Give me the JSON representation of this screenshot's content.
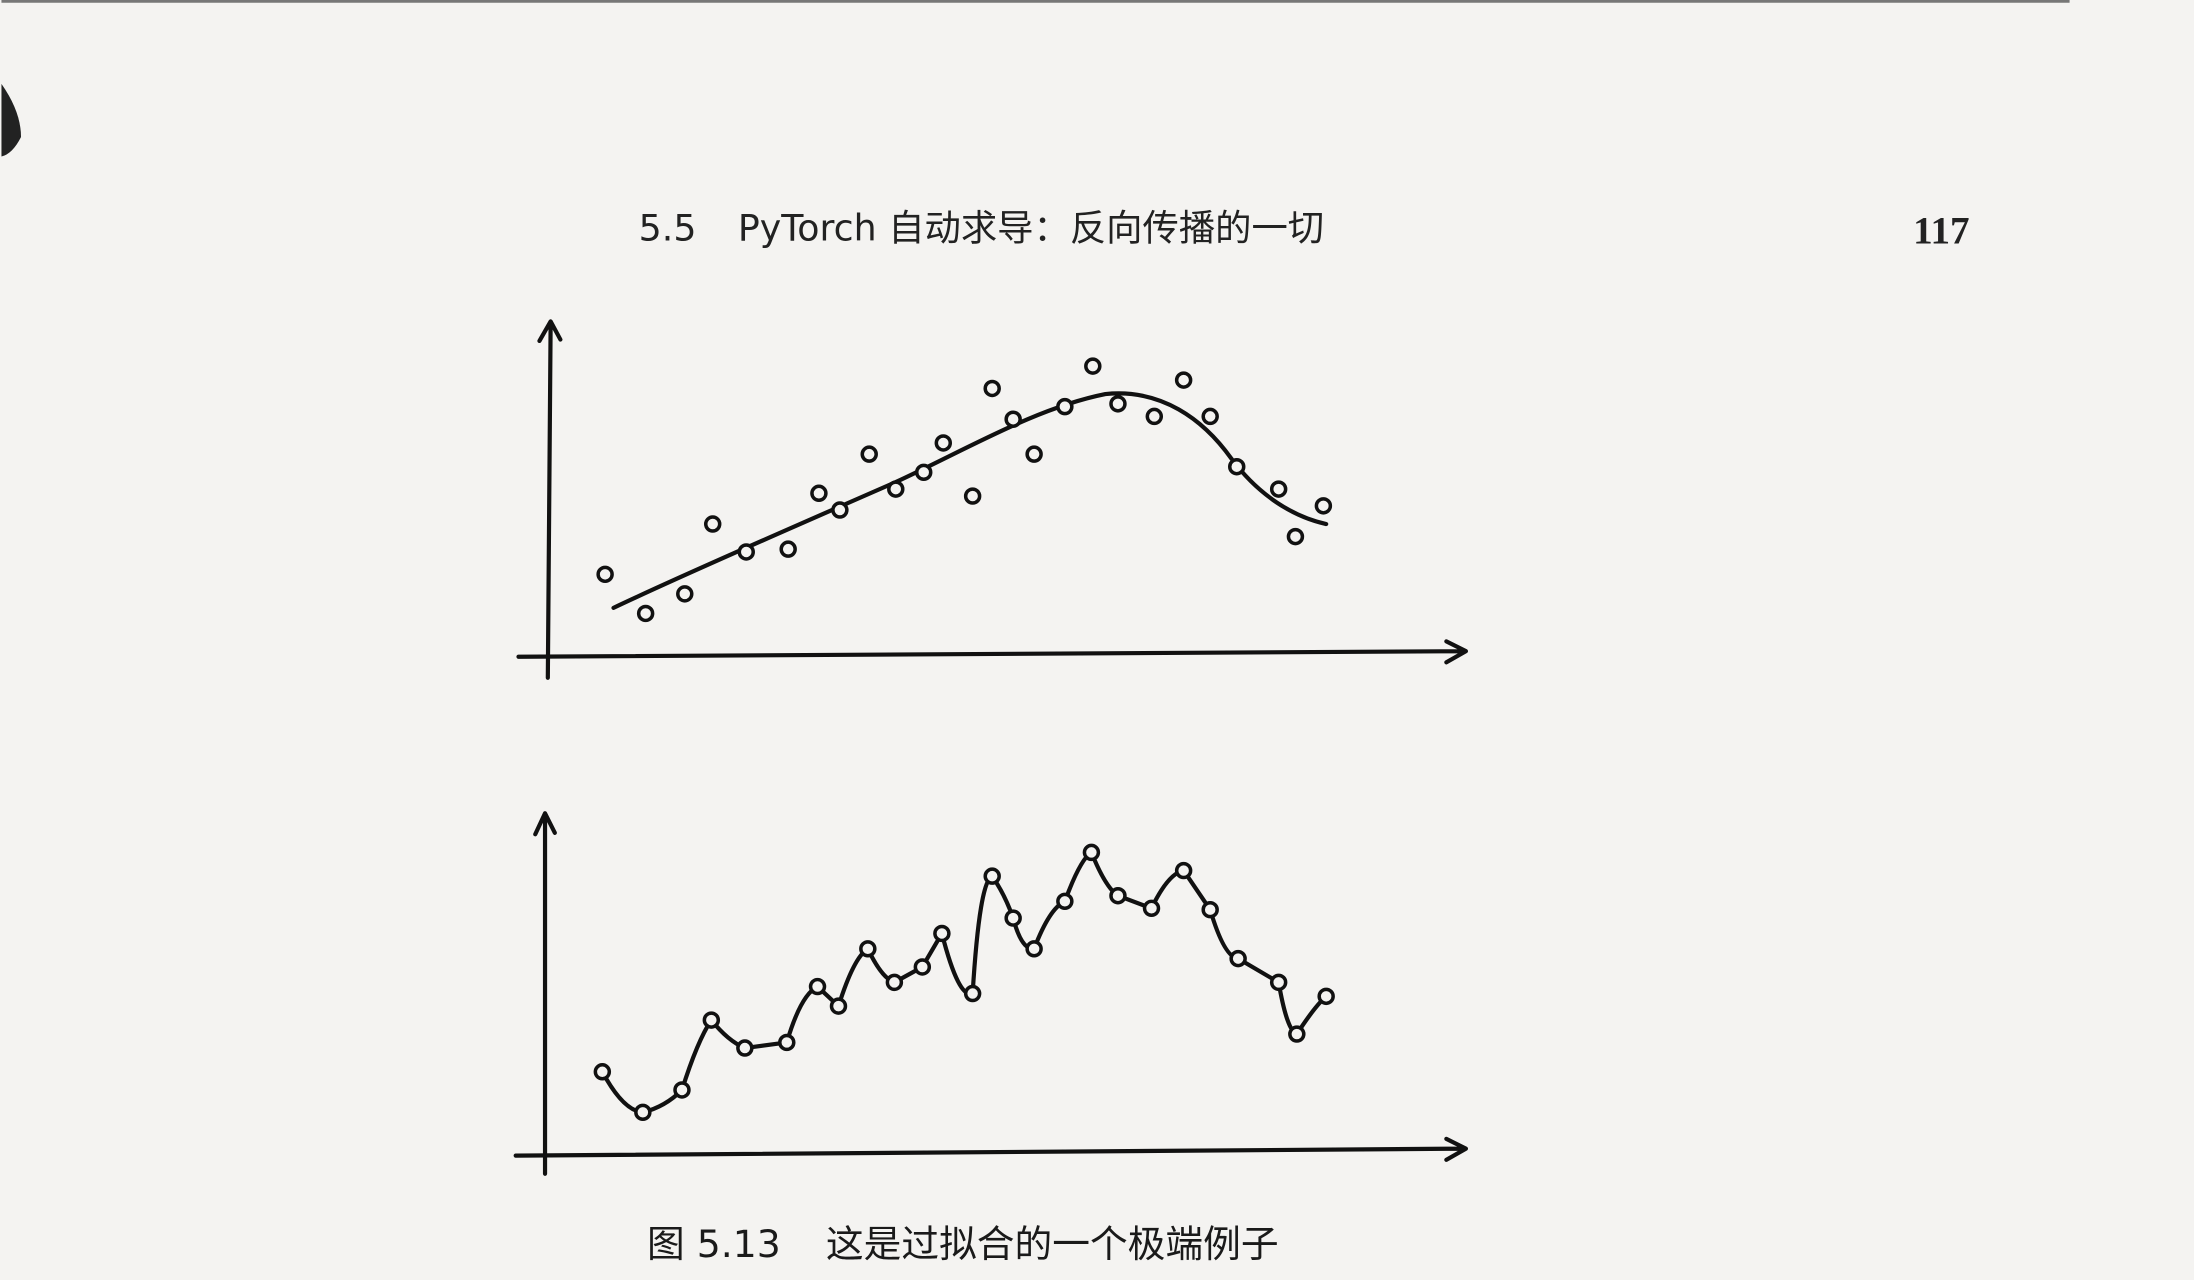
{
  "header": {
    "section": "5.5",
    "title": "PyTorch 自动求导：反向传播的一切",
    "page_number": "117"
  },
  "figure": {
    "label": "图 5.13",
    "caption": "这是过拟合的一个极端例子"
  }
}
